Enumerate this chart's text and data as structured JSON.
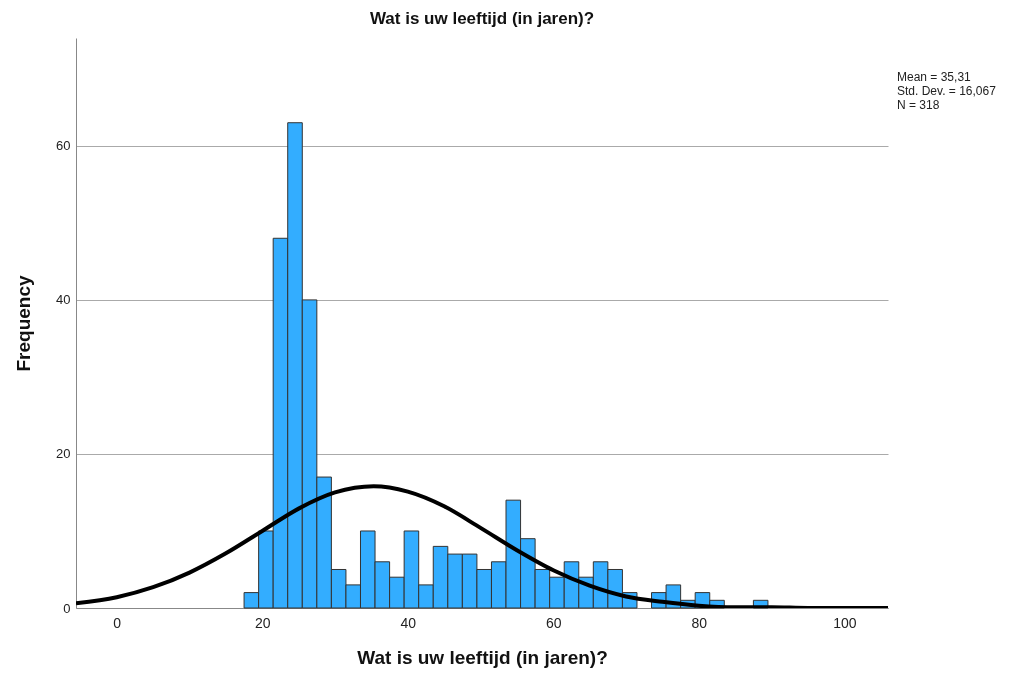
{
  "chart_data": {
    "type": "histogram",
    "title": "Wat is uw leeftijd (in jaren)?",
    "xlabel": "Wat is uw leeftijd (in jaren)?",
    "ylabel": "Frequency",
    "bins": [
      17.5,
      19.5,
      21.5,
      23.5,
      25.5,
      27.5,
      29.5,
      31.5,
      33.5,
      35.5,
      37.5,
      39.5,
      41.5,
      43.5,
      45.5,
      47.5,
      49.5,
      51.5,
      53.5,
      55.5,
      57.5,
      59.5,
      61.5,
      63.5,
      65.5,
      67.5,
      69.5,
      71.5,
      73.5,
      75.5,
      77.5,
      79.5,
      81.5,
      83.5,
      85.5,
      87.5,
      89.5
    ],
    "values": [
      2,
      10,
      48,
      63,
      40,
      17,
      5,
      3,
      10,
      6,
      4,
      10,
      3,
      8,
      7,
      7,
      5,
      6,
      14,
      9,
      5,
      4,
      6,
      4,
      6,
      5,
      2,
      0,
      2,
      3,
      1,
      2,
      1,
      0,
      0,
      1
    ],
    "color": "#33adff",
    "series": [
      {
        "type": "line",
        "color": "#000000",
        "x": [
          -5.6,
          0,
          5,
          10,
          15,
          20,
          25,
          30,
          35.31,
          40,
          45,
          50,
          55,
          60,
          65,
          70,
          75,
          80,
          85,
          90,
          95,
          100,
          106
        ],
        "values": [
          0.6,
          1.4,
          2.7,
          4.6,
          7.1,
          10.0,
          12.9,
          15.0,
          15.8,
          15.1,
          13.2,
          10.4,
          7.5,
          4.9,
          2.9,
          1.5,
          0.8,
          0.3,
          0.1,
          0.1,
          0,
          0,
          0
        ]
      }
    ],
    "xlim": [
      -5.6,
      106
    ],
    "xticks": [
      0,
      20,
      40,
      60,
      80,
      100
    ],
    "ylim": [
      0,
      74
    ],
    "yticks": [
      0,
      20,
      40,
      60
    ],
    "grid": "y",
    "annotations": [
      "Mean = 35,31",
      "Std. Dev. = 16,067",
      "N = 318"
    ]
  }
}
